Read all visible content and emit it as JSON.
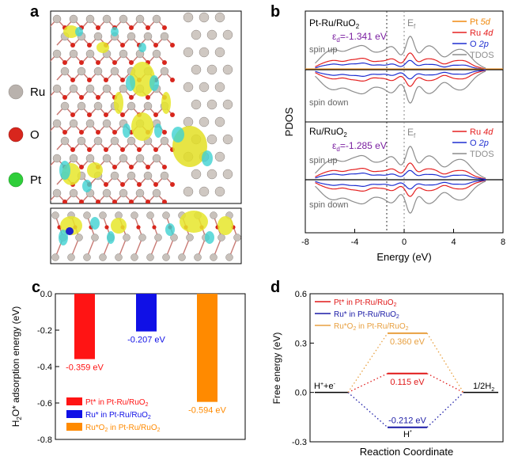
{
  "figure": {
    "panels": {
      "a": {
        "letter": "a",
        "legend": [
          {
            "label": "Ru",
            "color": "#b9b2ad"
          },
          {
            "label": "O",
            "color": "#d8261d"
          },
          {
            "label": "Pt",
            "color": "#2fce3a"
          }
        ]
      },
      "b": {
        "letter": "b",
        "xlabel": "Energy (eV)",
        "ylabel": "PDOS",
        "xticks": [
          "-8",
          "-4",
          "0",
          "4",
          "8"
        ],
        "top": {
          "title_pre": "Pt-Ru/RuO",
          "title_sub": "2",
          "ed_label": "ε",
          "ed_sub": "d",
          "ed_value": "=-1.341 eV",
          "ef_label": "E",
          "ef_sub": "f",
          "spin_up": "spin up",
          "spin_down": "spin down",
          "legend": [
            {
              "pre": "Pt ",
              "ital": "5d",
              "color": "#f08a10"
            },
            {
              "pre": "Ru ",
              "ital": "4d",
              "color": "#e52121"
            },
            {
              "pre": "O ",
              "ital": "2p",
              "color": "#1f2fd1"
            },
            {
              "pre": "TDOS",
              "ital": "",
              "color": "#8c8c8c"
            }
          ]
        },
        "bottom": {
          "title_pre": "Ru/RuO",
          "title_sub": "2",
          "ed_label": "ε",
          "ed_sub": "d",
          "ed_value": "=-1.285 eV",
          "ef_label": "E",
          "ef_sub": "f",
          "spin_up": "spin up",
          "spin_down": "spin down",
          "legend": [
            {
              "pre": "Ru ",
              "ital": "4d",
              "color": "#e52121"
            },
            {
              "pre": "O ",
              "ital": "2p",
              "color": "#1f2fd1"
            },
            {
              "pre": "TDOS",
              "ital": "",
              "color": "#8c8c8c"
            }
          ]
        }
      },
      "c": {
        "letter": "c",
        "ylabel_pre": "H",
        "ylabel_sub": "2",
        "ylabel_post": "O* adsorption energy (eV)",
        "yticks": [
          "0.0",
          "-0.2",
          "-0.4",
          "-0.6",
          "-0.8"
        ],
        "legend": [
          {
            "text": "Pt* in Pt-Ru/RuO",
            "sub": "2",
            "color": "#ff1414"
          },
          {
            "text": "Ru* in Pt-Ru/RuO",
            "sub": "2",
            "color": "#1010e6"
          },
          {
            "text": "Ru*O",
            "sub": "2",
            "text2": " in Pt-Ru/RuO",
            "sub2": "2",
            "color": "#ff8a00"
          }
        ]
      },
      "d": {
        "letter": "d",
        "xlabel": "Reaction Coordinate",
        "ylabel": "Free energy (eV)",
        "yticks": [
          "0.6",
          "0.3",
          "0.0",
          "-0.3"
        ],
        "left_state": "H",
        "left_sup1": "+",
        "left_mid": "+e",
        "left_sup2": "-",
        "right_state_pre": "1/2H",
        "right_state_sub": "2",
        "mid_label": "H",
        "mid_sup": "*",
        "legend": [
          {
            "text": "Pt* in Pt-Ru/RuO",
            "sub": "2",
            "color": "#e01818"
          },
          {
            "text": "Ru* in Pt-Ru/RuO",
            "sub": "2",
            "color": "#1a1aa6"
          },
          {
            "text": "Ru*O",
            "sub": "2",
            "text2": " in Pt-Ru/RuO",
            "sub2": "2",
            "color": "#e8a040"
          }
        ]
      }
    }
  },
  "chart_data": [
    {
      "type": "bar",
      "panel": "c",
      "categories": [
        "Pt* in Pt-Ru/RuO2",
        "Ru* in Pt-Ru/RuO2",
        "Ru*O2 in Pt-Ru/RuO2"
      ],
      "values": [
        -0.359,
        -0.207,
        -0.594
      ],
      "value_labels": [
        "-0.359 eV",
        "-0.207 eV",
        "-0.594 eV"
      ],
      "colors": [
        "#ff1414",
        "#1010e6",
        "#ff8a00"
      ],
      "ylim": [
        -0.8,
        0.0
      ],
      "legend_position": "bottom-left"
    },
    {
      "type": "line",
      "panel": "d",
      "ylim": [
        -0.3,
        0.6
      ],
      "states": [
        0,
        1,
        2
      ],
      "series": [
        {
          "name": "Pt* in Pt-Ru/RuO2",
          "values": [
            0.0,
            0.115,
            0.0
          ],
          "label": "0.115 eV",
          "color": "#e01818"
        },
        {
          "name": "Ru* in Pt-Ru/RuO2",
          "values": [
            0.0,
            -0.212,
            0.0
          ],
          "label": "-0.212 eV",
          "color": "#1a1aa6"
        },
        {
          "name": "Ru*O2 in Pt-Ru/RuO2",
          "values": [
            0.0,
            0.36,
            0.0
          ],
          "label": "0.360 eV",
          "color": "#e8a040"
        }
      ],
      "legend_position": "top-left"
    },
    {
      "type": "line",
      "panel": "b",
      "xlim": [
        -8,
        8
      ],
      "subplots": [
        {
          "name": "Pt-Ru/RuO2",
          "d_band_center": -1.341,
          "fermi": 0
        },
        {
          "name": "Ru/RuO2",
          "d_band_center": -1.285,
          "fermi": 0
        }
      ]
    }
  ]
}
